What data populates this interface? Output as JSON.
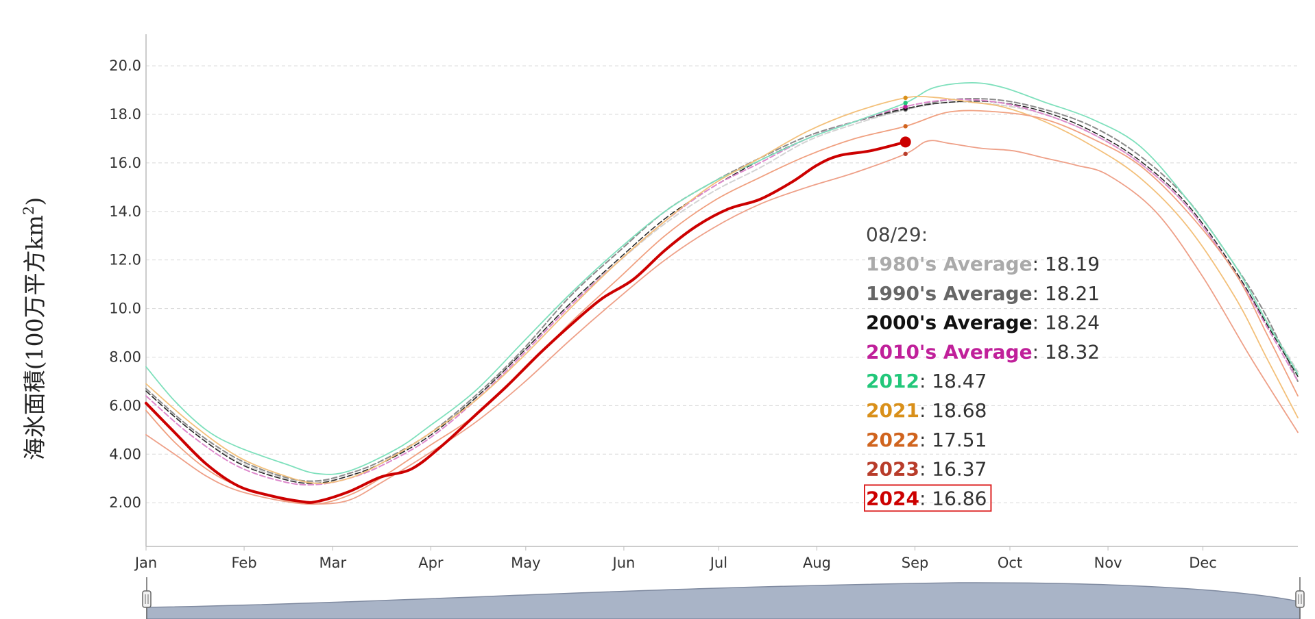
{
  "chart_data": {
    "type": "line",
    "ylabel": "海氷面積(100万平方km²)",
    "ylabel_main": "海氷面積(100万平方km",
    "ylabel_sup": "2",
    "ylabel_close": ")",
    "ylim": [
      0.2,
      21.3
    ],
    "xlim": [
      1,
      365
    ],
    "grid": true,
    "y_ticks": [
      {
        "value": 2,
        "label": "2.00"
      },
      {
        "value": 4,
        "label": "4.00"
      },
      {
        "value": 6,
        "label": "6.00"
      },
      {
        "value": 8,
        "label": "8.00"
      },
      {
        "value": 10,
        "label": "10.0"
      },
      {
        "value": 12,
        "label": "12.0"
      },
      {
        "value": 14,
        "label": "14.0"
      },
      {
        "value": 16,
        "label": "16.0"
      },
      {
        "value": 18,
        "label": "18.0"
      },
      {
        "value": 20,
        "label": "20.0"
      }
    ],
    "x_ticks": [
      {
        "day": 1,
        "label": "Jan"
      },
      {
        "day": 32,
        "label": "Feb"
      },
      {
        "day": 60,
        "label": "Mar"
      },
      {
        "day": 91,
        "label": "Apr"
      },
      {
        "day": 121,
        "label": "May"
      },
      {
        "day": 152,
        "label": "Jun"
      },
      {
        "day": 182,
        "label": "Jul"
      },
      {
        "day": 213,
        "label": "Aug"
      },
      {
        "day": 244,
        "label": "Sep"
      },
      {
        "day": 274,
        "label": "Oct"
      },
      {
        "day": 305,
        "label": "Nov"
      },
      {
        "day": 335,
        "label": "Dec"
      }
    ],
    "series": [
      {
        "name": "1980's Average",
        "color": "#d3d3d3",
        "dashed": true,
        "width": 2,
        "points": [
          [
            1,
            6.6
          ],
          [
            15,
            5.0
          ],
          [
            30,
            3.7
          ],
          [
            45,
            3.0
          ],
          [
            55,
            2.85
          ],
          [
            65,
            3.1
          ],
          [
            75,
            3.6
          ],
          [
            90,
            4.8
          ],
          [
            105,
            6.3
          ],
          [
            120,
            8.2
          ],
          [
            135,
            10.2
          ],
          [
            150,
            11.9
          ],
          [
            165,
            13.5
          ],
          [
            180,
            14.8
          ],
          [
            195,
            15.8
          ],
          [
            210,
            16.9
          ],
          [
            225,
            17.6
          ],
          [
            241,
            18.19
          ],
          [
            255,
            18.5
          ],
          [
            270,
            18.4
          ],
          [
            285,
            18.0
          ],
          [
            300,
            17.2
          ],
          [
            315,
            16.0
          ],
          [
            330,
            14.2
          ],
          [
            345,
            11.5
          ],
          [
            355,
            9.5
          ],
          [
            365,
            7.4
          ]
        ]
      },
      {
        "name": "1990's Average",
        "color": "#8a8a8a",
        "dashed": true,
        "width": 2,
        "points": [
          [
            1,
            6.7
          ],
          [
            15,
            5.1
          ],
          [
            30,
            3.8
          ],
          [
            45,
            3.05
          ],
          [
            55,
            2.9
          ],
          [
            65,
            3.2
          ],
          [
            75,
            3.7
          ],
          [
            90,
            4.8
          ],
          [
            105,
            6.4
          ],
          [
            120,
            8.3
          ],
          [
            135,
            10.5
          ],
          [
            150,
            12.3
          ],
          [
            165,
            14.0
          ],
          [
            180,
            15.2
          ],
          [
            195,
            16.2
          ],
          [
            210,
            17.1
          ],
          [
            225,
            17.7
          ],
          [
            241,
            18.21
          ],
          [
            255,
            18.6
          ],
          [
            270,
            18.6
          ],
          [
            285,
            18.2
          ],
          [
            300,
            17.5
          ],
          [
            315,
            16.3
          ],
          [
            330,
            14.5
          ],
          [
            345,
            11.8
          ],
          [
            355,
            9.7
          ],
          [
            365,
            7.0
          ]
        ]
      },
      {
        "name": "2000's Average",
        "color": "#222222",
        "dashed": true,
        "width": 1.5,
        "points": [
          [
            1,
            6.6
          ],
          [
            15,
            5.0
          ],
          [
            30,
            3.65
          ],
          [
            45,
            2.95
          ],
          [
            55,
            2.8
          ],
          [
            65,
            3.1
          ],
          [
            75,
            3.6
          ],
          [
            90,
            4.7
          ],
          [
            105,
            6.3
          ],
          [
            120,
            8.2
          ],
          [
            135,
            10.2
          ],
          [
            150,
            12.0
          ],
          [
            165,
            13.7
          ],
          [
            180,
            15.0
          ],
          [
            195,
            16.1
          ],
          [
            210,
            17.0
          ],
          [
            225,
            17.7
          ],
          [
            241,
            18.24
          ],
          [
            255,
            18.5
          ],
          [
            270,
            18.5
          ],
          [
            285,
            18.1
          ],
          [
            300,
            17.3
          ],
          [
            315,
            16.1
          ],
          [
            330,
            14.3
          ],
          [
            345,
            11.6
          ],
          [
            355,
            9.4
          ],
          [
            365,
            7.2
          ]
        ]
      },
      {
        "name": "2010's Average",
        "color": "#dd88cc",
        "dashed": true,
        "width": 2,
        "points": [
          [
            1,
            6.4
          ],
          [
            15,
            4.8
          ],
          [
            30,
            3.5
          ],
          [
            45,
            2.85
          ],
          [
            55,
            2.75
          ],
          [
            65,
            3.0
          ],
          [
            75,
            3.5
          ],
          [
            90,
            4.6
          ],
          [
            105,
            6.2
          ],
          [
            120,
            8.1
          ],
          [
            135,
            10.1
          ],
          [
            150,
            11.9
          ],
          [
            165,
            13.6
          ],
          [
            180,
            15.0
          ],
          [
            195,
            16.0
          ],
          [
            210,
            17.0
          ],
          [
            225,
            17.7
          ],
          [
            241,
            18.32
          ],
          [
            255,
            18.6
          ],
          [
            270,
            18.5
          ],
          [
            285,
            18.0
          ],
          [
            300,
            17.2
          ],
          [
            315,
            16.0
          ],
          [
            330,
            14.2
          ],
          [
            345,
            11.5
          ],
          [
            355,
            9.3
          ],
          [
            365,
            7.0
          ]
        ]
      },
      {
        "name": "2012",
        "color": "#7ee0bc",
        "dashed": false,
        "width": 1.8,
        "points": [
          [
            1,
            7.6
          ],
          [
            10,
            6.2
          ],
          [
            20,
            5.0
          ],
          [
            30,
            4.3
          ],
          [
            45,
            3.6
          ],
          [
            55,
            3.2
          ],
          [
            65,
            3.3
          ],
          [
            80,
            4.2
          ],
          [
            90,
            5.1
          ],
          [
            105,
            6.6
          ],
          [
            120,
            8.6
          ],
          [
            135,
            10.6
          ],
          [
            150,
            12.4
          ],
          [
            165,
            14.0
          ],
          [
            180,
            15.2
          ],
          [
            195,
            16.1
          ],
          [
            210,
            17.0
          ],
          [
            225,
            17.7
          ],
          [
            241,
            18.47
          ],
          [
            250,
            19.1
          ],
          [
            262,
            19.3
          ],
          [
            272,
            19.1
          ],
          [
            285,
            18.5
          ],
          [
            300,
            17.8
          ],
          [
            315,
            16.7
          ],
          [
            330,
            14.5
          ],
          [
            345,
            11.8
          ],
          [
            355,
            9.5
          ],
          [
            365,
            7.3
          ]
        ]
      },
      {
        "name": "2021",
        "color": "#f3c07a",
        "dashed": false,
        "width": 1.8,
        "points": [
          [
            1,
            6.9
          ],
          [
            15,
            5.3
          ],
          [
            30,
            3.9
          ],
          [
            45,
            3.1
          ],
          [
            55,
            2.8
          ],
          [
            65,
            3.0
          ],
          [
            75,
            3.6
          ],
          [
            90,
            4.8
          ],
          [
            105,
            6.2
          ],
          [
            120,
            8.0
          ],
          [
            135,
            10.0
          ],
          [
            150,
            11.9
          ],
          [
            165,
            13.6
          ],
          [
            180,
            15.1
          ],
          [
            195,
            16.2
          ],
          [
            210,
            17.3
          ],
          [
            225,
            18.1
          ],
          [
            241,
            18.68
          ],
          [
            250,
            18.7
          ],
          [
            262,
            18.5
          ],
          [
            272,
            18.3
          ],
          [
            285,
            17.7
          ],
          [
            300,
            16.7
          ],
          [
            315,
            15.4
          ],
          [
            330,
            13.4
          ],
          [
            345,
            10.5
          ],
          [
            355,
            8.0
          ],
          [
            365,
            5.5
          ]
        ]
      },
      {
        "name": "2022",
        "color": "#f0a080",
        "dashed": false,
        "width": 1.8,
        "points": [
          [
            1,
            5.8
          ],
          [
            10,
            4.5
          ],
          [
            20,
            3.4
          ],
          [
            30,
            2.7
          ],
          [
            45,
            2.1
          ],
          [
            55,
            1.95
          ],
          [
            65,
            2.3
          ],
          [
            75,
            3.0
          ],
          [
            90,
            4.3
          ],
          [
            105,
            5.6
          ],
          [
            120,
            7.4
          ],
          [
            135,
            9.4
          ],
          [
            150,
            11.2
          ],
          [
            165,
            13.0
          ],
          [
            180,
            14.4
          ],
          [
            195,
            15.4
          ],
          [
            210,
            16.3
          ],
          [
            225,
            17.0
          ],
          [
            241,
            17.51
          ],
          [
            255,
            18.1
          ],
          [
            270,
            18.1
          ],
          [
            285,
            17.8
          ],
          [
            300,
            17.0
          ],
          [
            315,
            15.9
          ],
          [
            330,
            14.0
          ],
          [
            345,
            11.5
          ],
          [
            355,
            9.0
          ],
          [
            365,
            6.4
          ]
        ]
      },
      {
        "name": "2023",
        "color": "#eea088",
        "dashed": false,
        "width": 1.8,
        "points": [
          [
            1,
            4.8
          ],
          [
            10,
            4.0
          ],
          [
            20,
            3.1
          ],
          [
            30,
            2.5
          ],
          [
            45,
            2.05
          ],
          [
            55,
            1.95
          ],
          [
            65,
            2.1
          ],
          [
            75,
            2.8
          ],
          [
            90,
            4.0
          ],
          [
            105,
            5.3
          ],
          [
            120,
            6.9
          ],
          [
            135,
            8.7
          ],
          [
            150,
            10.4
          ],
          [
            165,
            12.0
          ],
          [
            180,
            13.3
          ],
          [
            195,
            14.3
          ],
          [
            210,
            15.0
          ],
          [
            225,
            15.6
          ],
          [
            241,
            16.37
          ],
          [
            248,
            16.9
          ],
          [
            255,
            16.8
          ],
          [
            265,
            16.6
          ],
          [
            275,
            16.5
          ],
          [
            285,
            16.2
          ],
          [
            295,
            15.9
          ],
          [
            305,
            15.5
          ],
          [
            320,
            14.0
          ],
          [
            335,
            11.3
          ],
          [
            350,
            8.0
          ],
          [
            365,
            4.9
          ]
        ]
      },
      {
        "name": "2024",
        "color": "#cc0000",
        "dashed": false,
        "width": 4,
        "points": [
          [
            1,
            6.1
          ],
          [
            10,
            4.9
          ],
          [
            20,
            3.6
          ],
          [
            30,
            2.7
          ],
          [
            40,
            2.3
          ],
          [
            50,
            2.05
          ],
          [
            55,
            2.05
          ],
          [
            65,
            2.45
          ],
          [
            75,
            3.05
          ],
          [
            85,
            3.4
          ],
          [
            95,
            4.4
          ],
          [
            105,
            5.6
          ],
          [
            115,
            6.8
          ],
          [
            125,
            8.1
          ],
          [
            135,
            9.3
          ],
          [
            145,
            10.4
          ],
          [
            155,
            11.2
          ],
          [
            165,
            12.4
          ],
          [
            175,
            13.4
          ],
          [
            185,
            14.1
          ],
          [
            195,
            14.5
          ],
          [
            205,
            15.2
          ],
          [
            213,
            15.9
          ],
          [
            220,
            16.3
          ],
          [
            230,
            16.5
          ],
          [
            241,
            16.86
          ]
        ]
      }
    ],
    "tooltip": {
      "date": "08/29:",
      "highlighted": "2024",
      "entries": [
        {
          "name": "1980's Average",
          "value": "18.19",
          "color": "#aaaaaa"
        },
        {
          "name": "1990's Average",
          "value": "18.21",
          "color": "#666666"
        },
        {
          "name": "2000's Average",
          "value": "18.24",
          "color": "#111111"
        },
        {
          "name": "2010's Average",
          "value": "18.32",
          "color": "#c0209a"
        },
        {
          "name": "2012",
          "value": "18.47",
          "color": "#22c77a"
        },
        {
          "name": "2021",
          "value": "18.68",
          "color": "#d9901a"
        },
        {
          "name": "2022",
          "value": "17.51",
          "color": "#d0641e"
        },
        {
          "name": "2023",
          "value": "16.37",
          "color": "#b83c2a"
        },
        {
          "name": "2024",
          "value": "16.86",
          "color": "#cc0000"
        }
      ]
    }
  }
}
